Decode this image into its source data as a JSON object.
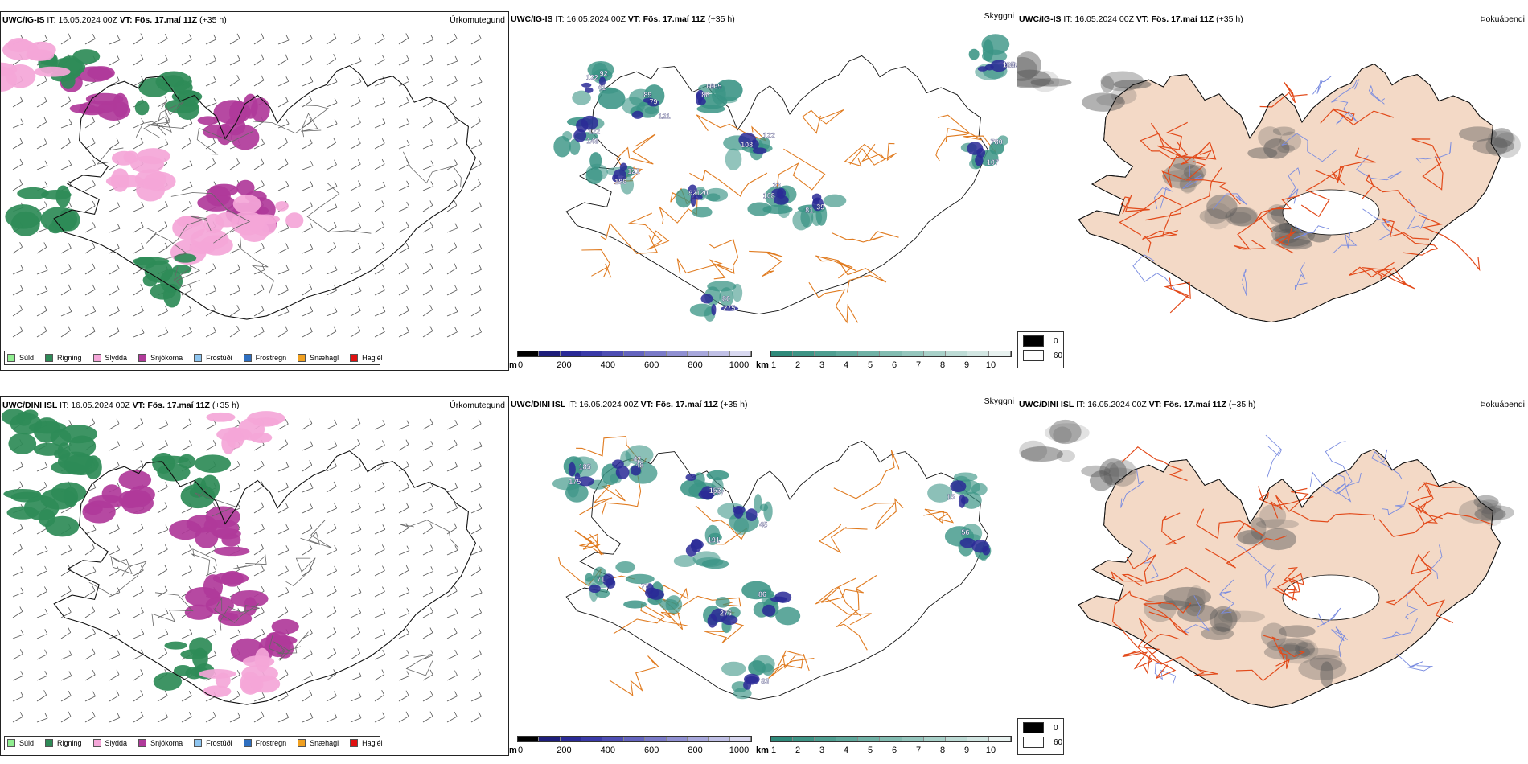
{
  "rows": [
    {
      "model": "UWC/IG-IS",
      "it_label": "IT:",
      "it_value": "16.05.2024 00Z",
      "vt_label": "VT:",
      "vt_value": "Fös. 17.maí 11Z",
      "lead": "(+35 h)",
      "panel1_name": "Úrkomutegund",
      "panel2_name": "Skyggni",
      "panel3_name": "Þokuábendi",
      "visibility_labels": [
        "41",
        "79",
        "69",
        "108",
        "92",
        "33",
        "39",
        "275",
        "780",
        "404",
        "148",
        "186",
        "92",
        "89",
        "86",
        "122",
        "120",
        "108",
        "81",
        "80",
        "107",
        "105",
        "122",
        "121",
        "122",
        "121",
        "665"
      ],
      "cloud_labels": []
    },
    {
      "model": "UWC/DINI ISL",
      "it_label": "IT:",
      "it_value": "16.05.2024 00Z",
      "vt_label": "VT:",
      "vt_value": "Fös. 17.maí 11Z",
      "lead": "(+35 h)",
      "panel1_name": "Úrkomutegund",
      "panel2_name": "Skyggni",
      "panel3_name": "Þokuábendi",
      "visibility_labels": [
        "175",
        "48",
        "197",
        "45",
        "77",
        "276",
        "86",
        "83",
        "56",
        "15",
        "71",
        "191",
        "185",
        "42",
        "153"
      ],
      "cloud_labels": []
    }
  ],
  "precip_legend": [
    {
      "label": "Súld",
      "color": "#90ee90"
    },
    {
      "label": "Rigning",
      "color": "#2e8b57"
    },
    {
      "label": "Slydda",
      "color": "#f4a6d8"
    },
    {
      "label": "Snjókoma",
      "color": "#b03a9a"
    },
    {
      "label": "Frostúði",
      "color": "#8ec5f0"
    },
    {
      "label": "Frostregn",
      "color": "#2f6fc0"
    },
    {
      "label": "Snæhagl",
      "color": "#f0a020"
    },
    {
      "label": "Haglél",
      "color": "#e01010"
    }
  ],
  "ceiling_bar": {
    "unit": "m",
    "ticks": [
      "0",
      "200",
      "400",
      "600",
      "800",
      "1000"
    ],
    "colors": [
      "#000000",
      "#1e1e7a",
      "#2a2a96",
      "#3a3aa8",
      "#4e4eb4",
      "#6464be",
      "#7a7ac8",
      "#9090d2",
      "#a8a8dc",
      "#c0c0e6",
      "#d8d8f0"
    ]
  },
  "visibility_bar": {
    "unit": "km",
    "ticks": [
      "1",
      "2",
      "3",
      "4",
      "5",
      "6",
      "7",
      "8",
      "9",
      "10"
    ],
    "colors": [
      "#2f8a7a",
      "#3e9485",
      "#4e9e90",
      "#5fa89b",
      "#70b2a6",
      "#82bcb1",
      "#95c6bd",
      "#a9d1c9",
      "#bddbd5",
      "#d2e6e2",
      "#e8f2f0"
    ]
  },
  "fog_legend": [
    {
      "label": "0",
      "color": "#000000"
    },
    {
      "label": "60",
      "color": "#ffffff"
    }
  ],
  "colors": {
    "coast": "#111111",
    "roads_orange": "#e07b20",
    "roads_red": "#e24a1a",
    "rivers": "#7a8ce0",
    "land_fill": "#f3d9c6",
    "barbs": "#555555",
    "vis_teal": "#3a9485",
    "ceiling_blue": "#2a2a96",
    "rain": "#2e8b57",
    "snow": "#b03a9a",
    "sleet": "#f4a6d8"
  }
}
